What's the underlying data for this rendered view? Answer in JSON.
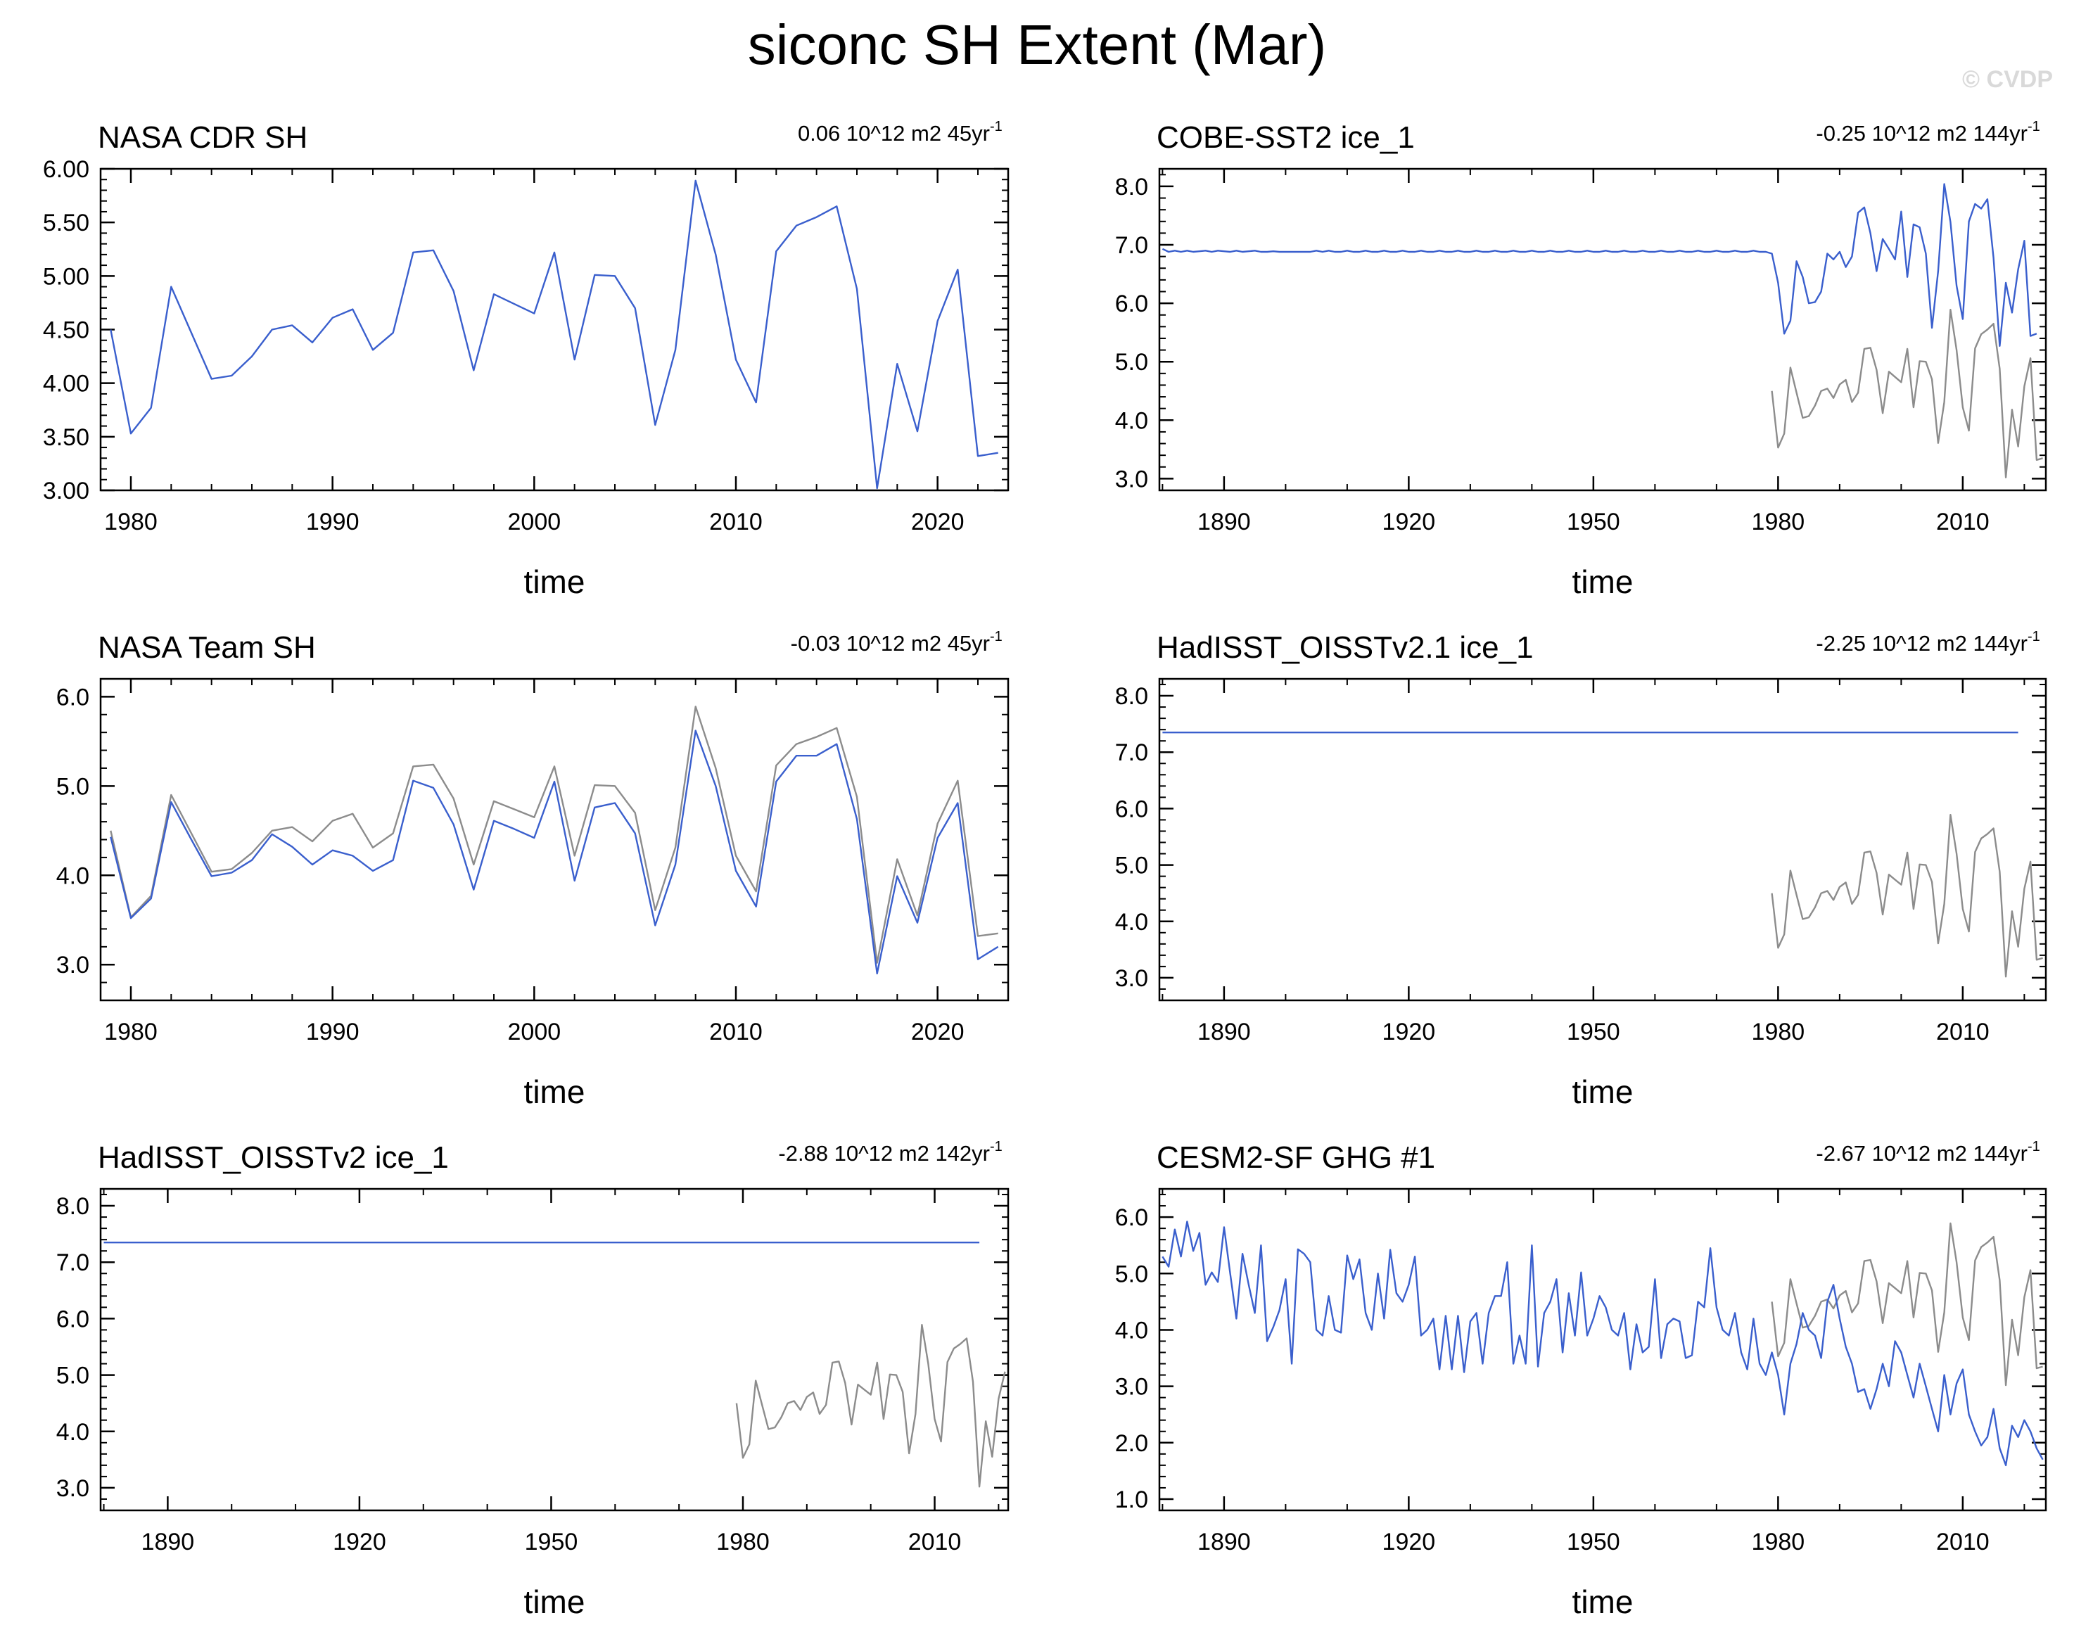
{
  "title": "siconc SH Extent (Mar)",
  "watermark": "© CVDP",
  "colors": {
    "primary": "#3a5fcd",
    "reference": "#8c8c8c",
    "axis": "#000000"
  },
  "chart_data": [
    {
      "type": "line",
      "title": "NASA CDR SH",
      "trend": "0.06 10^12 m2 45yr",
      "trend_sup": "-1",
      "xlabel": "time",
      "xlim": [
        1978.5,
        2023.5
      ],
      "ylim": [
        3.0,
        6.0
      ],
      "yticks": [
        "3.00",
        "3.50",
        "4.00",
        "4.50",
        "5.00",
        "5.50",
        "6.00"
      ],
      "xticks": [
        1980,
        1990,
        2000,
        2010,
        2020
      ],
      "series": [
        {
          "role": "primary",
          "x0": 1979,
          "values": [
            4.5,
            3.53,
            3.77,
            4.9,
            4.47,
            4.04,
            4.07,
            4.25,
            4.5,
            4.54,
            4.38,
            4.61,
            4.69,
            4.31,
            4.47,
            5.22,
            5.24,
            4.86,
            4.12,
            4.83,
            4.74,
            4.65,
            5.22,
            4.22,
            5.01,
            5.0,
            4.7,
            3.61,
            4.31,
            5.89,
            5.2,
            4.22,
            3.82,
            5.23,
            5.47,
            5.55,
            5.65,
            4.88,
            3.02,
            4.18,
            3.55,
            4.58,
            5.06,
            3.32,
            3.35
          ]
        }
      ]
    },
    {
      "type": "line",
      "title": "COBE-SST2 ice_1",
      "trend": "-0.25 10^12 m2 144yr",
      "trend_sup": "-1",
      "xlabel": "time",
      "xlim": [
        1879.5,
        2023.5
      ],
      "ylim": [
        2.8,
        8.3
      ],
      "yticks": [
        "3.0",
        "4.0",
        "5.0",
        "6.0",
        "7.0",
        "8.0"
      ],
      "xticks": [
        1890,
        1920,
        1950,
        1980,
        2010
      ],
      "series": [
        {
          "role": "reference",
          "x0": 1979,
          "values": [
            4.5,
            3.53,
            3.77,
            4.9,
            4.47,
            4.04,
            4.07,
            4.25,
            4.5,
            4.54,
            4.38,
            4.61,
            4.69,
            4.31,
            4.47,
            5.22,
            5.24,
            4.86,
            4.12,
            4.83,
            4.74,
            4.65,
            5.22,
            4.22,
            5.01,
            5.0,
            4.7,
            3.61,
            4.31,
            5.89,
            5.2,
            4.22,
            3.82,
            5.23,
            5.47,
            5.55,
            5.65,
            4.88,
            3.02,
            4.18,
            3.55,
            4.58,
            5.06,
            3.32,
            3.35
          ]
        },
        {
          "role": "primary",
          "x0": 1880,
          "values": [
            6.93,
            6.88,
            6.9,
            6.88,
            6.9,
            6.88,
            6.89,
            6.9,
            6.88,
            6.9,
            6.89,
            6.88,
            6.9,
            6.88,
            6.89,
            6.9,
            6.88,
            6.88,
            6.89,
            6.88,
            6.88,
            6.88,
            6.88,
            6.88,
            6.88,
            6.9,
            6.88,
            6.9,
            6.88,
            6.88,
            6.9,
            6.88,
            6.88,
            6.9,
            6.88,
            6.88,
            6.9,
            6.88,
            6.88,
            6.9,
            6.88,
            6.88,
            6.9,
            6.88,
            6.88,
            6.9,
            6.88,
            6.88,
            6.9,
            6.88,
            6.88,
            6.9,
            6.88,
            6.88,
            6.9,
            6.88,
            6.88,
            6.9,
            6.88,
            6.88,
            6.9,
            6.88,
            6.88,
            6.9,
            6.88,
            6.88,
            6.9,
            6.88,
            6.88,
            6.9,
            6.88,
            6.88,
            6.9,
            6.88,
            6.88,
            6.9,
            6.88,
            6.88,
            6.9,
            6.88,
            6.88,
            6.9,
            6.88,
            6.88,
            6.9,
            6.88,
            6.88,
            6.9,
            6.88,
            6.88,
            6.9,
            6.88,
            6.88,
            6.9,
            6.88,
            6.88,
            6.9,
            6.88,
            6.88,
            6.85,
            6.35,
            5.48,
            5.7,
            6.72,
            6.45,
            6.0,
            6.02,
            6.2,
            6.85,
            6.75,
            6.88,
            6.62,
            6.8,
            7.55,
            7.64,
            7.2,
            6.55,
            7.1,
            6.93,
            6.75,
            7.57,
            6.45,
            7.35,
            7.3,
            6.85,
            5.58,
            6.55,
            8.04,
            7.39,
            6.3,
            5.73,
            7.4,
            7.7,
            7.62,
            7.78,
            6.78,
            5.27,
            6.35,
            5.84,
            6.58,
            7.07,
            5.44,
            5.48
          ]
        }
      ]
    },
    {
      "type": "line",
      "title": "NASA Team SH",
      "trend": "-0.03 10^12 m2 45yr",
      "trend_sup": "-1",
      "xlabel": "time",
      "xlim": [
        1978.5,
        2023.5
      ],
      "ylim": [
        2.6,
        6.2
      ],
      "yticks": [
        "3.0",
        "4.0",
        "5.0",
        "6.0"
      ],
      "xticks": [
        1980,
        1990,
        2000,
        2010,
        2020
      ],
      "series": [
        {
          "role": "reference",
          "x0": 1979,
          "values": [
            4.5,
            3.53,
            3.77,
            4.9,
            4.47,
            4.04,
            4.07,
            4.25,
            4.5,
            4.54,
            4.38,
            4.61,
            4.69,
            4.31,
            4.47,
            5.22,
            5.24,
            4.86,
            4.12,
            4.83,
            4.74,
            4.65,
            5.22,
            4.22,
            5.01,
            5.0,
            4.7,
            3.61,
            4.31,
            5.89,
            5.2,
            4.22,
            3.82,
            5.23,
            5.47,
            5.55,
            5.65,
            4.88,
            3.02,
            4.18,
            3.55,
            4.58,
            5.06,
            3.32,
            3.35
          ]
        },
        {
          "role": "primary",
          "x0": 1979,
          "values": [
            4.43,
            3.52,
            3.74,
            4.82,
            4.4,
            3.99,
            4.03,
            4.17,
            4.46,
            4.32,
            4.12,
            4.28,
            4.22,
            4.05,
            4.17,
            5.06,
            4.98,
            4.57,
            3.84,
            4.61,
            4.52,
            4.42,
            5.05,
            3.94,
            4.76,
            4.81,
            4.47,
            3.44,
            4.12,
            5.62,
            5.0,
            4.05,
            3.65,
            5.05,
            5.34,
            5.34,
            5.47,
            4.63,
            2.9,
            3.99,
            3.47,
            4.42,
            4.81,
            3.06,
            3.2
          ]
        }
      ]
    },
    {
      "type": "line",
      "title": "HadISST_OISSTv2.1 ice_1",
      "trend": "-2.25 10^12 m2 144yr",
      "trend_sup": "-1",
      "xlabel": "time",
      "xlim": [
        1879.5,
        2023.5
      ],
      "ylim": [
        2.6,
        8.3
      ],
      "yticks": [
        "3.0",
        "4.0",
        "5.0",
        "6.0",
        "7.0",
        "8.0"
      ],
      "xticks": [
        1890,
        1920,
        1950,
        1980,
        2010
      ],
      "series": [
        {
          "role": "reference",
          "x0": 1979,
          "values": [
            4.5,
            3.53,
            3.77,
            4.9,
            4.47,
            4.04,
            4.07,
            4.25,
            4.5,
            4.54,
            4.38,
            4.61,
            4.69,
            4.31,
            4.47,
            5.22,
            5.24,
            4.86,
            4.12,
            4.83,
            4.74,
            4.65,
            5.22,
            4.22,
            5.01,
            5.0,
            4.7,
            3.61,
            4.31,
            5.89,
            5.2,
            4.22,
            3.82,
            5.23,
            5.47,
            5.55,
            5.65,
            4.88,
            3.02,
            4.18,
            3.55,
            4.58,
            5.06,
            3.32,
            3.35
          ]
        },
        {
          "role": "primary",
          "x0": 1880,
          "values": [
            7.35,
            7.35,
            7.35,
            7.35,
            7.35,
            7.35,
            7.35,
            7.35,
            7.35,
            7.35,
            7.35,
            7.35,
            7.35,
            7.35,
            7.35,
            7.35,
            7.35,
            7.35,
            7.35,
            7.35,
            7.35,
            7.35,
            7.35,
            7.35,
            7.35,
            7.35,
            7.35,
            7.35,
            7.35,
            7.35,
            7.35,
            7.35,
            7.35,
            7.35,
            7.35,
            7.35,
            7.35,
            7.35,
            7.35,
            7.35,
            7.35,
            7.35,
            7.35,
            7.35,
            7.35,
            7.35,
            7.35,
            7.35,
            7.35,
            7.35,
            7.35,
            7.35,
            7.35,
            7.35,
            7.35,
            7.35,
            7.35,
            7.35,
            7.35,
            7.35,
            7.35,
            7.35,
            7.35,
            7.35,
            7.35,
            7.35,
            7.35,
            7.35,
            7.35,
            7.35,
            7.35,
            7.35,
            7.35,
            7.35,
            7.35,
            7.35,
            7.35,
            7.35,
            7.35,
            7.35,
            7.35,
            7.35,
            7.35,
            7.35,
            7.35,
            7.35,
            7.35,
            7.35,
            7.35,
            7.35,
            7.35,
            7.35,
            7.35,
            7.35,
            7.35,
            7.35,
            7.35,
            7.35,
            7.35,
            7.35,
            7.35,
            7.35,
            7.35,
            7.35,
            7.35,
            7.35,
            7.35,
            7.35,
            7.35,
            7.35,
            7.35,
            7.35,
            7.35,
            7.35,
            7.35,
            7.35,
            7.35,
            7.35,
            7.35,
            7.35,
            7.35,
            7.35,
            7.35,
            7.35,
            7.35,
            7.35,
            7.35,
            7.35,
            7.35,
            7.35,
            7.35,
            7.35,
            7.35,
            7.35,
            7.35,
            7.35,
            7.35,
            7.35,
            7.35,
            7.35
          ]
        }
      ]
    },
    {
      "type": "line",
      "title": "HadISST_OISSTv2 ice_1",
      "trend": "-2.88 10^12 m2 142yr",
      "trend_sup": "-1",
      "xlabel": "time",
      "xlim": [
        1879.5,
        2021.5
      ],
      "ylim": [
        2.6,
        8.3
      ],
      "yticks": [
        "3.0",
        "4.0",
        "5.0",
        "6.0",
        "7.0",
        "8.0"
      ],
      "xticks": [
        1890,
        1920,
        1950,
        1980,
        2010
      ],
      "series": [
        {
          "role": "reference",
          "x0": 1979,
          "values": [
            4.5,
            3.53,
            3.77,
            4.9,
            4.47,
            4.04,
            4.07,
            4.25,
            4.5,
            4.54,
            4.38,
            4.61,
            4.69,
            4.31,
            4.47,
            5.22,
            5.24,
            4.86,
            4.12,
            4.83,
            4.74,
            4.65,
            5.22,
            4.22,
            5.01,
            5.0,
            4.7,
            3.61,
            4.31,
            5.89,
            5.2,
            4.22,
            3.82,
            5.23,
            5.47,
            5.55,
            5.65,
            4.88,
            3.02,
            4.18,
            3.55,
            4.58,
            5.06
          ]
        },
        {
          "role": "primary",
          "x0": 1880,
          "values": [
            7.35,
            7.35,
            7.35,
            7.35,
            7.35,
            7.35,
            7.35,
            7.35,
            7.35,
            7.35,
            7.35,
            7.35,
            7.35,
            7.35,
            7.35,
            7.35,
            7.35,
            7.35,
            7.35,
            7.35,
            7.35,
            7.35,
            7.35,
            7.35,
            7.35,
            7.35,
            7.35,
            7.35,
            7.35,
            7.35,
            7.35,
            7.35,
            7.35,
            7.35,
            7.35,
            7.35,
            7.35,
            7.35,
            7.35,
            7.35,
            7.35,
            7.35,
            7.35,
            7.35,
            7.35,
            7.35,
            7.35,
            7.35,
            7.35,
            7.35,
            7.35,
            7.35,
            7.35,
            7.35,
            7.35,
            7.35,
            7.35,
            7.35,
            7.35,
            7.35,
            7.35,
            7.35,
            7.35,
            7.35,
            7.35,
            7.35,
            7.35,
            7.35,
            7.35,
            7.35,
            7.35,
            7.35,
            7.35,
            7.35,
            7.35,
            7.35,
            7.35,
            7.35,
            7.35,
            7.35,
            7.35,
            7.35,
            7.35,
            7.35,
            7.35,
            7.35,
            7.35,
            7.35,
            7.35,
            7.35,
            7.35,
            7.35,
            7.35,
            7.35,
            7.35,
            7.35,
            7.35,
            7.35,
            7.35,
            7.35,
            7.35,
            7.35,
            7.35,
            7.35,
            7.35,
            7.35,
            7.35,
            7.35,
            7.35,
            7.35,
            7.35,
            7.35,
            7.35,
            7.35,
            7.35,
            7.35,
            7.35,
            7.35,
            7.35,
            7.35,
            7.35,
            7.35,
            7.35,
            7.35,
            7.35,
            7.35,
            7.35,
            7.35,
            7.35,
            7.35,
            7.35,
            7.35,
            7.35,
            7.35,
            7.35,
            7.35,
            7.35,
            7.35
          ]
        }
      ]
    },
    {
      "type": "line",
      "title": "CESM2-SF GHG #1",
      "trend": "-2.67 10^12 m2 144yr",
      "trend_sup": "-1",
      "xlabel": "time",
      "xlim": [
        1879.5,
        2023.5
      ],
      "ylim": [
        0.8,
        6.5
      ],
      "yticks": [
        "1.0",
        "2.0",
        "3.0",
        "4.0",
        "5.0",
        "6.0"
      ],
      "xticks": [
        1890,
        1920,
        1950,
        1980,
        2010
      ],
      "series": [
        {
          "role": "reference",
          "x0": 1979,
          "values": [
            4.5,
            3.53,
            3.77,
            4.9,
            4.47,
            4.04,
            4.07,
            4.25,
            4.5,
            4.54,
            4.38,
            4.61,
            4.69,
            4.31,
            4.47,
            5.22,
            5.24,
            4.86,
            4.12,
            4.83,
            4.74,
            4.65,
            5.22,
            4.22,
            5.01,
            5.0,
            4.7,
            3.61,
            4.31,
            5.89,
            5.2,
            4.22,
            3.82,
            5.23,
            5.47,
            5.55,
            5.65,
            4.88,
            3.02,
            4.18,
            3.55,
            4.58,
            5.06,
            3.32,
            3.35
          ]
        },
        {
          "role": "primary",
          "x0": 1880,
          "values": [
            5.3,
            5.12,
            5.78,
            5.3,
            5.92,
            5.4,
            5.72,
            4.8,
            5.02,
            4.85,
            5.82,
            5.0,
            4.2,
            5.35,
            4.8,
            4.3,
            5.5,
            3.8,
            4.05,
            4.35,
            4.9,
            3.4,
            5.43,
            5.35,
            5.2,
            4.0,
            3.9,
            4.6,
            4.0,
            3.95,
            5.32,
            4.9,
            5.25,
            4.3,
            4.0,
            5.0,
            4.2,
            5.42,
            4.65,
            4.5,
            4.8,
            5.3,
            3.9,
            4.0,
            4.2,
            3.3,
            4.25,
            3.3,
            4.25,
            3.25,
            4.15,
            4.3,
            3.4,
            4.3,
            4.6,
            4.6,
            5.2,
            3.4,
            3.9,
            3.4,
            5.5,
            3.35,
            4.3,
            4.5,
            4.9,
            3.6,
            4.65,
            3.9,
            5.02,
            3.9,
            4.2,
            4.6,
            4.4,
            4.0,
            3.9,
            4.3,
            3.3,
            4.1,
            3.6,
            3.7,
            4.9,
            3.5,
            4.1,
            4.2,
            4.15,
            3.5,
            3.55,
            4.5,
            4.4,
            5.45,
            4.4,
            4.0,
            3.9,
            4.3,
            3.6,
            3.3,
            4.2,
            3.4,
            3.2,
            3.6,
            3.2,
            2.5,
            3.4,
            3.75,
            4.3,
            4.0,
            3.9,
            3.5,
            4.5,
            4.8,
            4.2,
            3.7,
            3.4,
            2.9,
            2.95,
            2.6,
            2.95,
            3.4,
            3.0,
            3.8,
            3.6,
            3.2,
            2.8,
            3.4,
            3.0,
            2.6,
            2.2,
            3.2,
            2.5,
            3.05,
            3.3,
            2.5,
            2.2,
            1.95,
            2.1,
            2.6,
            1.9,
            1.6,
            2.3,
            2.1,
            2.4,
            2.2,
            1.9,
            1.7
          ]
        }
      ]
    }
  ]
}
